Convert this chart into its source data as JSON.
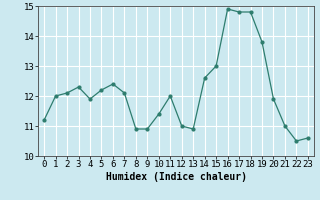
{
  "x": [
    0,
    1,
    2,
    3,
    4,
    5,
    6,
    7,
    8,
    9,
    10,
    11,
    12,
    13,
    14,
    15,
    16,
    17,
    18,
    19,
    20,
    21,
    22,
    23
  ],
  "y": [
    11.2,
    12.0,
    12.1,
    12.3,
    11.9,
    12.2,
    12.4,
    12.1,
    10.9,
    10.9,
    11.4,
    12.0,
    11.0,
    10.9,
    12.6,
    13.0,
    14.9,
    14.8,
    14.8,
    13.8,
    11.9,
    11.0,
    10.5,
    10.6
  ],
  "line_color": "#2e7d6e",
  "marker": "o",
  "marker_size": 2,
  "bg_color": "#cce9f0",
  "grid_color": "#ffffff",
  "grid_color_minor": "#e0f2f7",
  "xlabel": "Humidex (Indice chaleur)",
  "ylim": [
    10,
    15
  ],
  "xlim": [
    -0.5,
    23.5
  ],
  "yticks": [
    10,
    11,
    12,
    13,
    14,
    15
  ],
  "xticks": [
    0,
    1,
    2,
    3,
    4,
    5,
    6,
    7,
    8,
    9,
    10,
    11,
    12,
    13,
    14,
    15,
    16,
    17,
    18,
    19,
    20,
    21,
    22,
    23
  ],
  "label_fontsize": 7,
  "tick_fontsize": 6.5
}
